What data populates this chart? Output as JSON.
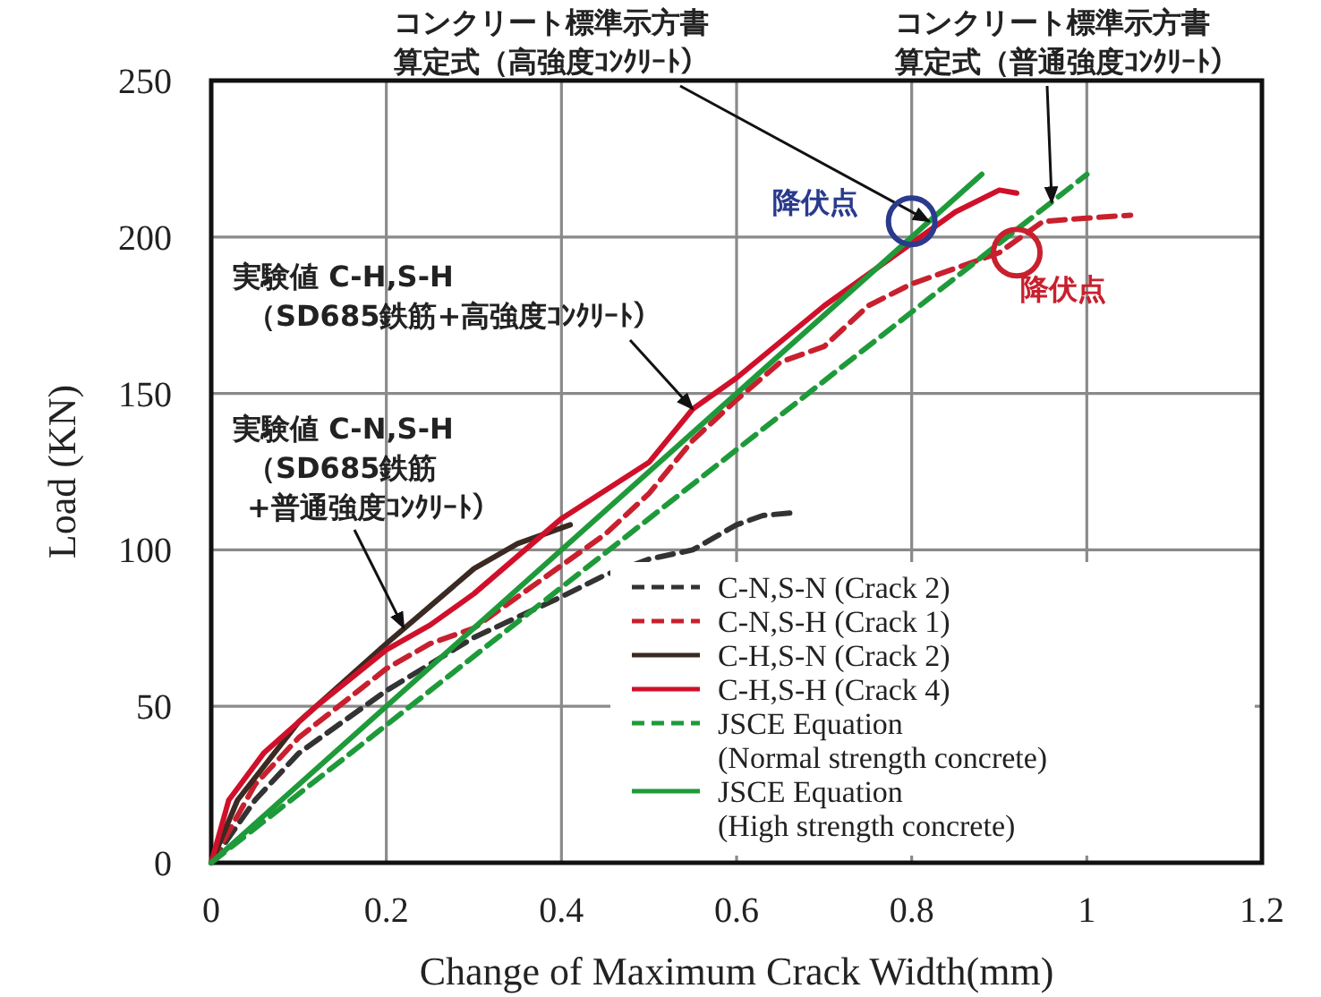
{
  "chart_data": {
    "type": "line",
    "xlabel": "Change of Maximum Crack Width(mm)",
    "ylabel": "Load (KN)",
    "xlim": [
      0,
      1.2
    ],
    "ylim": [
      0,
      250
    ],
    "xticks": [
      0,
      0.2,
      0.4,
      0.6,
      0.8,
      1,
      1.2
    ],
    "yticks": [
      0,
      50,
      100,
      150,
      200,
      250
    ],
    "grid": true,
    "legend": "bottom right",
    "marker": "none",
    "series": [
      {
        "name": "C-N,S-N (Crack 2)",
        "color": "#333333",
        "line_style": "dashed",
        "x": [
          0,
          0.05,
          0.1,
          0.2,
          0.3,
          0.4,
          0.45,
          0.5,
          0.55,
          0.6,
          0.63,
          0.67
        ],
        "values": [
          0,
          20,
          35,
          55,
          72,
          85,
          92,
          97,
          100,
          108,
          111,
          112
        ]
      },
      {
        "name": "C-N,S-H (Crack 1)",
        "color": "#c8202e",
        "line_style": "dashed",
        "x": [
          0,
          0.05,
          0.1,
          0.2,
          0.25,
          0.3,
          0.4,
          0.45,
          0.5,
          0.55,
          0.6,
          0.65,
          0.7,
          0.75,
          0.8,
          0.85,
          0.9,
          0.95,
          1.0,
          1.05
        ],
        "values": [
          0,
          25,
          40,
          62,
          70,
          75,
          95,
          105,
          118,
          135,
          148,
          160,
          165,
          178,
          185,
          190,
          195,
          205,
          206,
          207
        ]
      },
      {
        "name": "C-H,S-N (Crack 2)",
        "color": "#3a2a22",
        "line_style": "solid",
        "x": [
          0,
          0.03,
          0.1,
          0.2,
          0.25,
          0.3,
          0.35,
          0.41
        ],
        "values": [
          0,
          20,
          45,
          70,
          82,
          94,
          102,
          108
        ]
      },
      {
        "name": "C-H,S-H (Crack 4)",
        "color": "#d0102a",
        "line_style": "solid",
        "x": [
          0,
          0.02,
          0.06,
          0.12,
          0.2,
          0.25,
          0.3,
          0.4,
          0.5,
          0.55,
          0.6,
          0.7,
          0.8,
          0.85,
          0.9,
          0.92
        ],
        "values": [
          0,
          20,
          35,
          50,
          68,
          76,
          86,
          110,
          128,
          145,
          155,
          178,
          198,
          208,
          215,
          214
        ]
      },
      {
        "name": "JSCE Equation\n(Normal strength concrete)",
        "color": "#1f9a3a",
        "line_style": "dashed",
        "x": [
          0,
          1.0
        ],
        "values": [
          0,
          220
        ]
      },
      {
        "name": "JSCE Equation\n(High strength concrete)",
        "color": "#1f9a3a",
        "line_style": "solid",
        "x": [
          0,
          0.88
        ],
        "values": [
          0,
          220
        ]
      }
    ],
    "annotations": [
      {
        "text": "コンクリート標準示方書算定式（高強度ｺﾝｸﾘｰﾄ）",
        "x": 0.82,
        "y": 205
      },
      {
        "text": "コンクリート標準示方書算定式（普通強度ｺﾝｸﾘｰﾄ）",
        "x": 0.96,
        "y": 211
      },
      {
        "text": "実験値 C-H,S-H\n（SD685鉄筋+高強度ｺﾝｸﾘｰﾄ）",
        "x": 0.55,
        "y": 145
      },
      {
        "text": "実験値 C-N,S-H\n（SD685鉄筋\n+普通強度ｺﾝｸﾘｰﾄ）",
        "x": 0.22,
        "y": 75
      },
      {
        "text": "降伏点",
        "x": 0.8,
        "y": 205
      },
      {
        "text": "降伏点",
        "x": 0.92,
        "y": 195
      }
    ]
  }
}
